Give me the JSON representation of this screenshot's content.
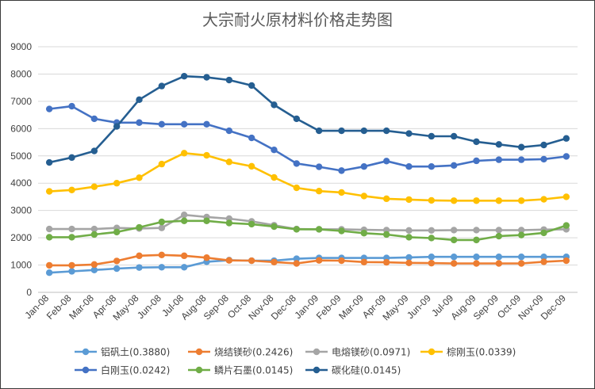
{
  "chart_data": {
    "type": "line",
    "title": "大宗耐火原材料价格走势图",
    "xlabel": "",
    "ylabel": "",
    "ylim": [
      0,
      9000
    ],
    "ystep": 1000,
    "y_ticks": [
      "0",
      "1000",
      "2000",
      "3000",
      "4000",
      "5000",
      "6000",
      "7000",
      "8000",
      "9000"
    ],
    "grid": true,
    "legend_position": "bottom",
    "categories": [
      "Jan-08",
      "Feb-08",
      "Mar-08",
      "Apr-08",
      "May-08",
      "Jun-08",
      "Jul-08",
      "Aug-08",
      "Sep-08",
      "Oct-08",
      "Nov-08",
      "Dec-08",
      "Jan-09",
      "Feb-09",
      "Mar-09",
      "Apr-09",
      "May-09",
      "Jun-09",
      "Jul-09",
      "Aug-09",
      "Sep-09",
      "Oct-09",
      "Nov-09",
      "Dec-09"
    ],
    "series": [
      {
        "name": "铝矾土(0.3880)",
        "color": "#5B9BD5",
        "values": [
          720,
          770,
          820,
          870,
          910,
          920,
          920,
          1120,
          1180,
          1160,
          1160,
          1230,
          1260,
          1260,
          1260,
          1260,
          1280,
          1300,
          1300,
          1300,
          1300,
          1300,
          1300,
          1300
        ]
      },
      {
        "name": "烧结镁砂(0.2426)",
        "color": "#ED7D31",
        "values": [
          990,
          990,
          1020,
          1150,
          1340,
          1370,
          1340,
          1270,
          1170,
          1160,
          1110,
          1060,
          1170,
          1160,
          1110,
          1100,
          1080,
          1070,
          1060,
          1060,
          1060,
          1060,
          1120,
          1160
        ]
      },
      {
        "name": "电熔镁砂(0.0971)",
        "color": "#A5A5A5",
        "values": [
          2320,
          2320,
          2320,
          2360,
          2340,
          2360,
          2840,
          2760,
          2700,
          2600,
          2460,
          2320,
          2310,
          2310,
          2290,
          2280,
          2270,
          2270,
          2280,
          2280,
          2280,
          2280,
          2300,
          2310
        ]
      },
      {
        "name": "棕刚玉(0.0339)",
        "color": "#FFC000",
        "values": [
          3700,
          3750,
          3870,
          4000,
          4200,
          4700,
          5100,
          5020,
          4780,
          4620,
          4210,
          3830,
          3710,
          3660,
          3530,
          3430,
          3400,
          3370,
          3360,
          3360,
          3360,
          3360,
          3410,
          3500
        ]
      },
      {
        "name": "白刚玉(0.0242)",
        "color": "#4472C4",
        "values": [
          6720,
          6820,
          6360,
          6220,
          6220,
          6160,
          6160,
          6160,
          5920,
          5660,
          5220,
          4720,
          4600,
          4460,
          4610,
          4810,
          4610,
          4610,
          4650,
          4820,
          4860,
          4860,
          4880,
          4980
        ]
      },
      {
        "name": "鳞片石墨(0.0145)",
        "color": "#70AD47",
        "values": [
          2020,
          2020,
          2120,
          2210,
          2380,
          2580,
          2620,
          2620,
          2540,
          2500,
          2410,
          2310,
          2310,
          2250,
          2170,
          2120,
          2020,
          1990,
          1920,
          1920,
          2060,
          2100,
          2180,
          2450
        ]
      },
      {
        "name": "碳化硅(0.0145)",
        "color": "#255E91",
        "values": [
          4760,
          4940,
          5180,
          6080,
          7060,
          7560,
          7920,
          7880,
          7780,
          7580,
          6870,
          6360,
          5920,
          5920,
          5920,
          5920,
          5820,
          5720,
          5720,
          5520,
          5420,
          5320,
          5400,
          5640
        ]
      }
    ]
  }
}
